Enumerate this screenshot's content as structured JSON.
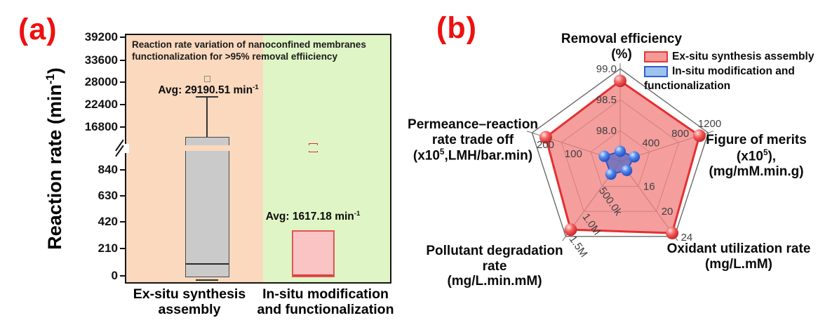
{
  "figure": {
    "panel_a": {
      "label": "(a)",
      "y_axis_title": [
        "Reaction rate (min",
        {
          "sup": "-1"
        },
        ")"
      ],
      "y_ticks_upper": [
        "39200",
        "33600",
        "28000",
        "22400",
        "16800"
      ],
      "y_ticks_lower": [
        "840",
        "630",
        "420",
        "210",
        "0"
      ],
      "header_lines": [
        "Reaction rate variation of nanoconfined membranes",
        "functionalization for >95% removal effiiciency"
      ],
      "annotations": {
        "ex_situ_avg": [
          "Avg: 29190.51 min",
          {
            "sup": "-1"
          }
        ],
        "in_situ_avg": [
          "Avg: 1617.18 min",
          {
            "sup": "-1"
          }
        ]
      },
      "x_categories": [
        {
          "lines": [
            "Ex-situ synthesis",
            "assembly"
          ]
        },
        {
          "lines": [
            "In-situ modification",
            "and functionalization"
          ]
        }
      ],
      "colors": {
        "ex_situ_bg": "#FAD9BE",
        "in_situ_bg": "#E0F5C5",
        "ex_situ_box": "#CACACA",
        "ex_situ_box_border": "#4a4a4a",
        "in_situ_box": "#FBC4C4",
        "in_situ_box_border": "#E05555"
      },
      "chart_data": {
        "type": "box",
        "ylabel": "Reaction rate (min^-1)",
        "y_axis_break": {
          "lower_section_max": 840,
          "upper_section_min": 16800
        },
        "y_ticks_upper": [
          39200,
          33600,
          28000,
          22400,
          16800
        ],
        "y_ticks_lower": [
          840,
          630,
          420,
          210,
          0
        ],
        "series": [
          {
            "name": "Ex-situ synthesis assembly",
            "mean": 29190.51,
            "whisker_high": 24600,
            "q3": 14700,
            "median": 110,
            "q1": 0,
            "whisker_low": 0
          },
          {
            "name": "In-situ modification and functionalization",
            "mean": 1617.18,
            "q3": 372,
            "median": 15,
            "q1": 0
          }
        ]
      }
    },
    "panel_b": {
      "label": "(b)",
      "legend": {
        "items": [
          {
            "key": "ex_situ",
            "lines": [
              "Ex-situ synthesis assembly"
            ]
          },
          {
            "key": "in_situ",
            "lines": [
              "In-situ modification and",
              "functionalization"
            ]
          }
        ]
      },
      "axis_titles": {
        "top": [
          [
            "Removal efficiency"
          ],
          [
            "(%)"
          ]
        ],
        "right": [
          [
            "Figure of merits"
          ],
          [
            "(x10",
            {
              "sup": "5"
            },
            "),"
          ],
          [
            "(mg/mM.min.g)"
          ]
        ],
        "bottom_right": [
          [
            "Oxidant utilization rate"
          ],
          [
            "(mg/L.mM)"
          ]
        ],
        "bottom_left": [
          [
            "Pollutant degradation rate"
          ],
          [
            "(mg/L.min.mM)"
          ]
        ],
        "left": [
          [
            "Permeance–reaction"
          ],
          [
            "rate trade off"
          ],
          [
            "(x10",
            {
              "sup": "5"
            },
            ",LMH/bar.min)"
          ]
        ]
      },
      "colors": {
        "ex_situ_fill": "#F07878",
        "ex_situ_stroke": "#E43030",
        "in_situ_fill": "#5068C8",
        "in_situ_stroke": "#3052C8"
      },
      "chart_data": {
        "type": "radar",
        "axes": [
          {
            "name": "Removal efficiency (%)",
            "ticks": [
              "98.0",
              "98.5",
              "99.0"
            ]
          },
          {
            "name": "Figure of merits (x10^5), (mg/mM.min.g)",
            "ticks": [
              "400",
              "800",
              "1200"
            ]
          },
          {
            "name": "Oxidant utilization rate (mg/L.mM)",
            "ticks": [
              "16",
              "20",
              "24"
            ]
          },
          {
            "name": "Pollutant degradation rate (mg/L.min.mM)",
            "ticks": [
              "500.0k",
              "1.0M",
              "1.5M"
            ]
          },
          {
            "name": "Permeance-reaction rate trade off (x10^5, LMH/bar.min)",
            "ticks": [
              "100",
              "200"
            ]
          }
        ],
        "series": [
          {
            "name": "Ex-situ synthesis assembly",
            "values_approx": [
              "98.8 %",
              "1100 x10^5 mg/mM.min.g",
              "23.5 mg/L.mM",
              "1.37M mg/L.min.mM",
              "170 x10^5 LMH/bar.min"
            ],
            "radial_fractions": [
              0.87,
              0.9,
              0.955,
              0.91,
              0.845
            ]
          },
          {
            "name": "In-situ modification and functionalization",
            "values_approx": [
              "97.7 %",
              "190 x10^5 mg/mM.min.g",
              "13.4 mg/L.mM",
              "250k mg/L.min.mM",
              "35 x10^5 LMH/bar.min"
            ],
            "radial_fractions": [
              0.11,
              0.16,
              0.12,
              0.17,
              0.18
            ]
          }
        ]
      }
    }
  }
}
